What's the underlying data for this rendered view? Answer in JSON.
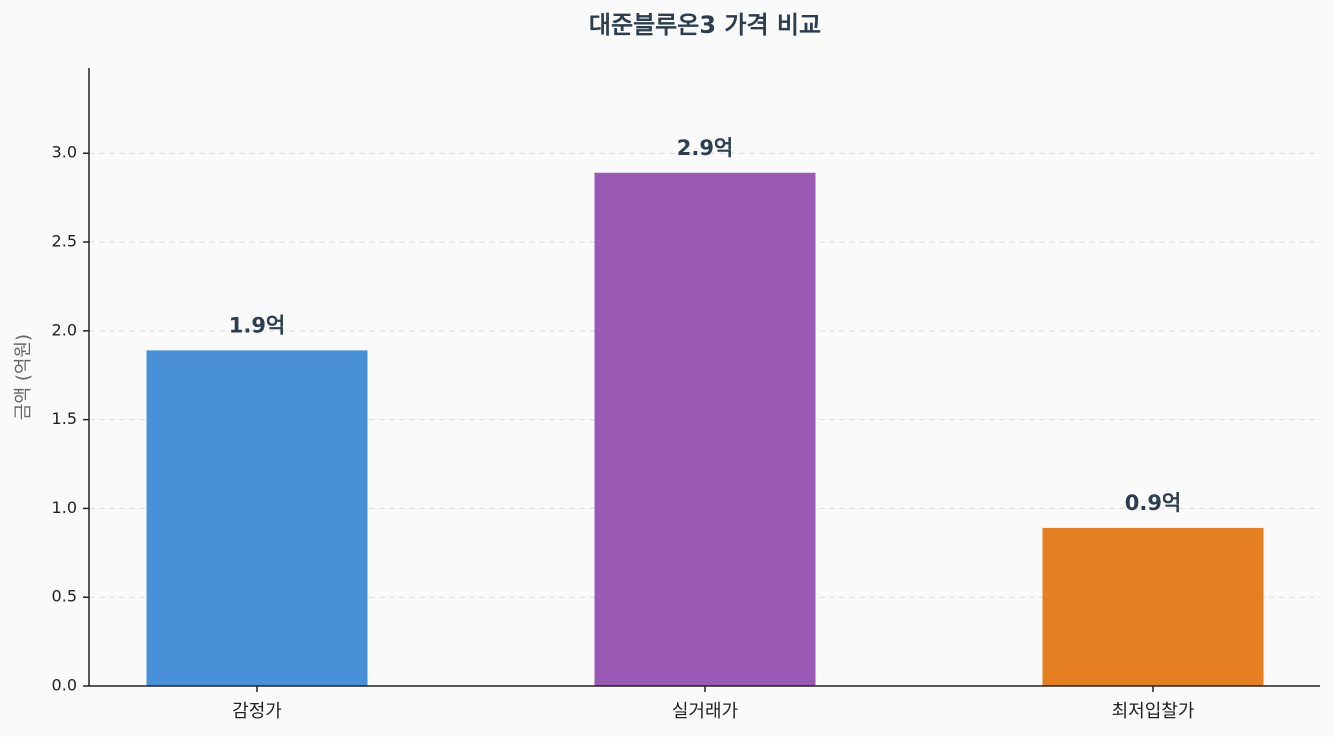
{
  "chart_data": {
    "type": "bar",
    "title": "대준블루온3 가격 비교",
    "y_label": "금액 (억원)",
    "categories": [
      "감정가",
      "실거래가",
      "최저입찰가"
    ],
    "values": [
      1.89,
      2.89,
      0.89
    ],
    "value_labels": [
      "1.9억",
      "2.9억",
      "0.9억"
    ],
    "colors": [
      "#4a90d9",
      "#9b59b6",
      "#e67e22"
    ],
    "ylim": [
      0,
      3.48
    ],
    "yticks": [
      {
        "value": 0,
        "label": "0.0"
      },
      0.5,
      {
        "value": 1,
        "label": "1.0"
      },
      1.5,
      {
        "value": 2,
        "label": "2.0"
      },
      2.5,
      {
        "value": 3,
        "label": "3.0"
      }
    ],
    "grid": true
  }
}
